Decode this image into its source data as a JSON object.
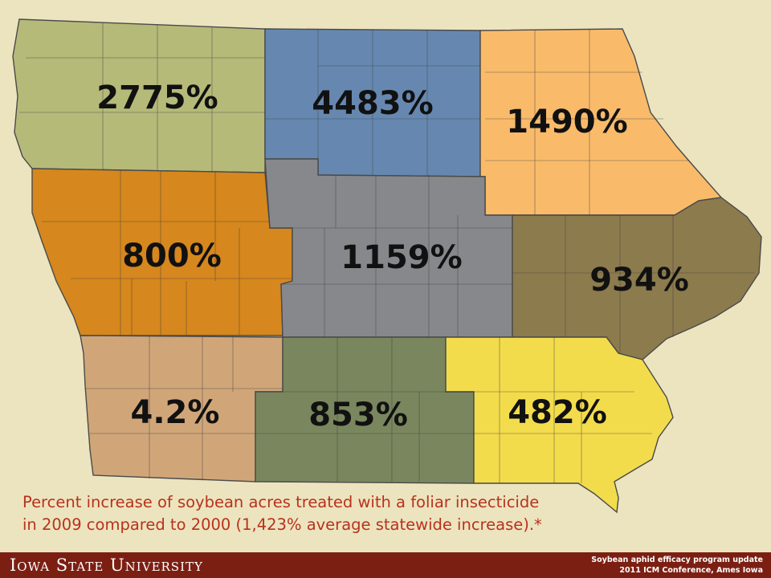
{
  "regions": [
    {
      "id": "northwest",
      "label": "2775%",
      "value_percent": 2775,
      "color": "#b5ba79"
    },
    {
      "id": "north-central",
      "label": "4483%",
      "value_percent": 4483,
      "color": "#6688b0"
    },
    {
      "id": "northeast",
      "label": "1490%",
      "value_percent": 1490,
      "color": "#f9bb6a"
    },
    {
      "id": "west-central",
      "label": "800%",
      "value_percent": 800,
      "color": "#d6871d"
    },
    {
      "id": "central",
      "label": "1159%",
      "value_percent": 1159,
      "color": "#87888b"
    },
    {
      "id": "east-central",
      "label": "934%",
      "value_percent": 934,
      "color": "#8c7b4d"
    },
    {
      "id": "southwest",
      "label": "4.2%",
      "value_percent": 4.2,
      "color": "#d0a679"
    },
    {
      "id": "south-central",
      "label": "853%",
      "value_percent": 853,
      "color": "#7a875e"
    },
    {
      "id": "southeast",
      "label": "482%",
      "value_percent": 482,
      "color": "#f3dc4c"
    }
  ],
  "caption": {
    "line1": "Percent increase of soybean acres treated with a foliar insecticide",
    "line2": "in 2009 compared to 2000 (1,423% average statewide increase).*"
  },
  "footer": {
    "logo": "Iowa State University",
    "line1": "Soybean aphid efficacy program update",
    "line2": "2011 ICM Conference, Ames Iowa"
  },
  "colors": {
    "background": "#ece4bf",
    "caption_text": "#b8321c",
    "footer_bar": "#7c1f13"
  }
}
